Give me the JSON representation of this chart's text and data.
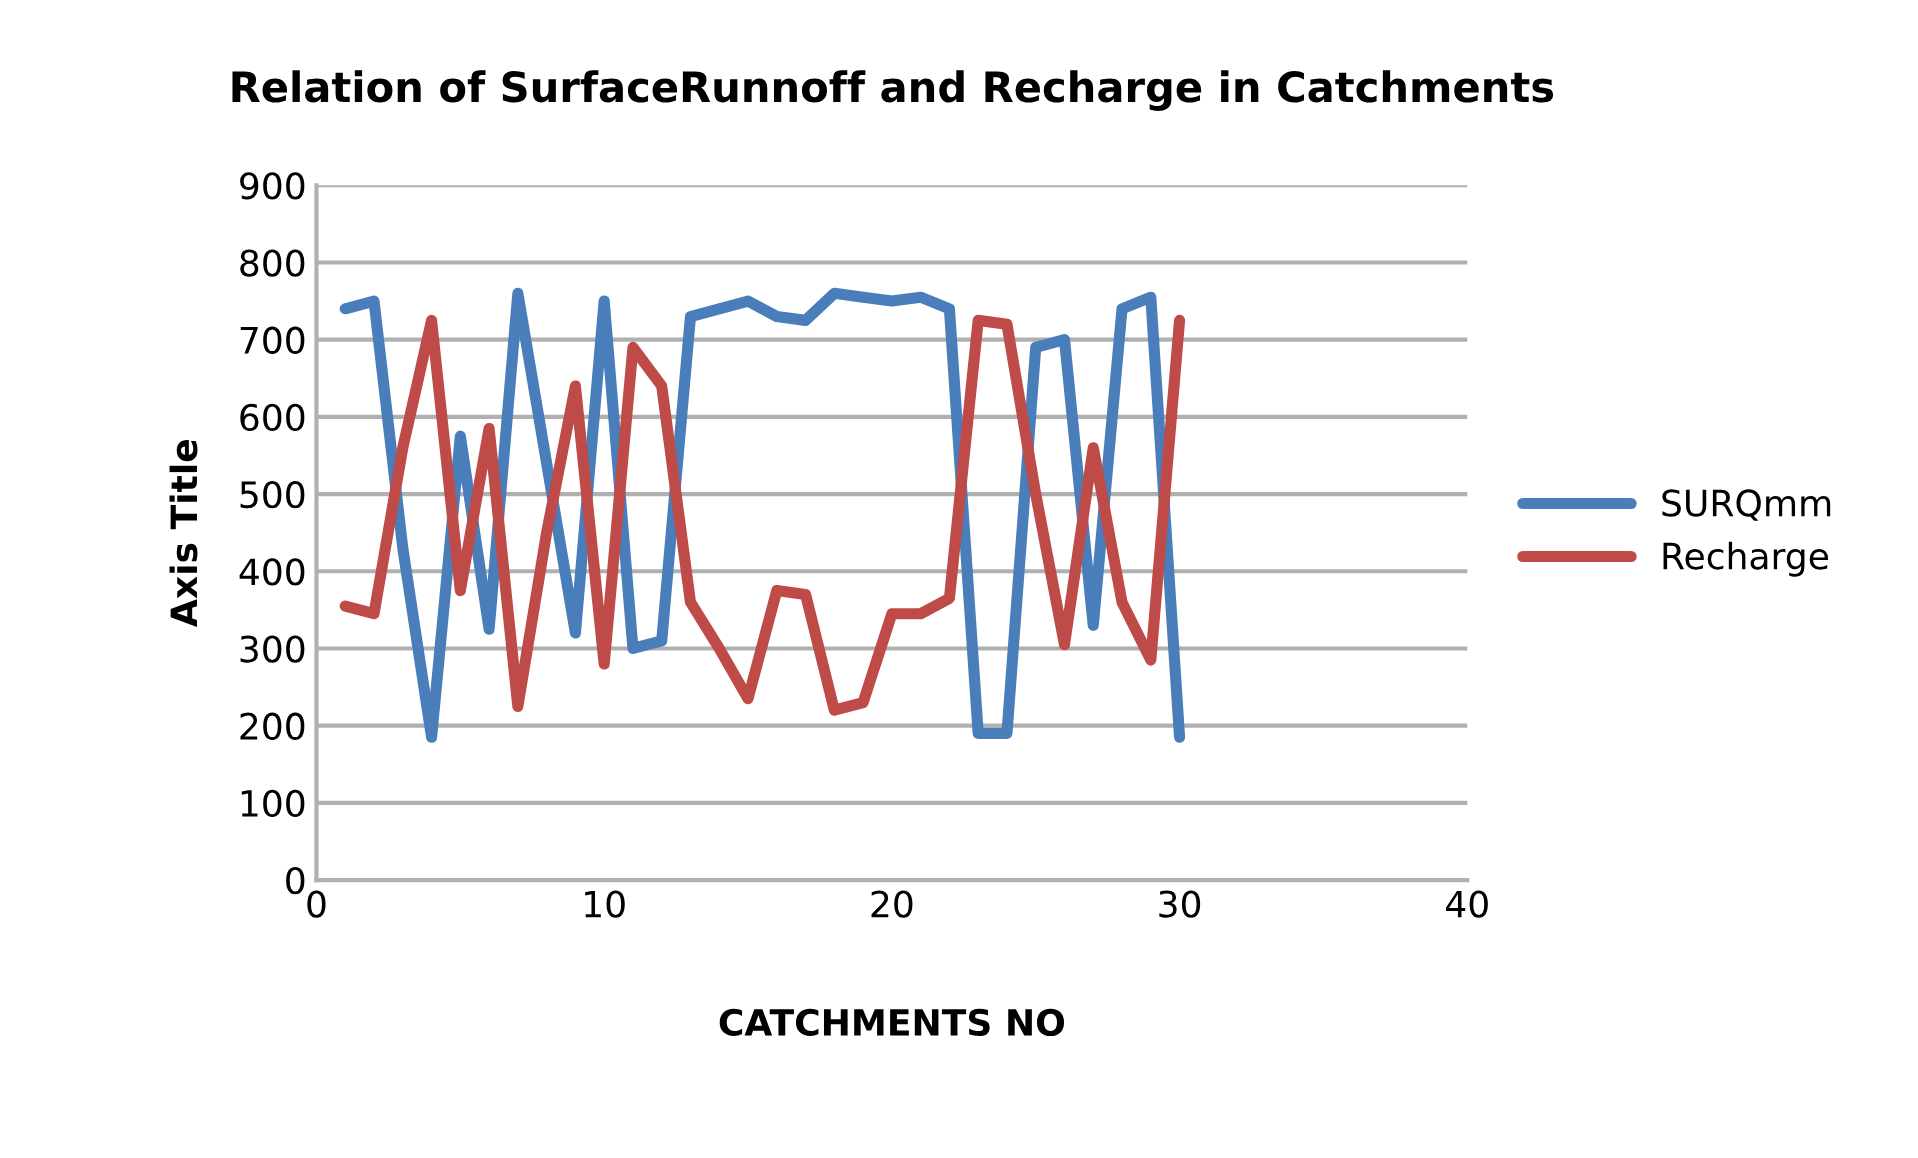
{
  "chart_data": {
    "type": "line",
    "title": "Relation of SurfaceRunnoff and Recharge in Catchments",
    "xlabel": "CATCHMENTS NO",
    "ylabel": "Axis Title",
    "x": [
      1,
      2,
      3,
      4,
      5,
      6,
      7,
      8,
      9,
      10,
      11,
      12,
      13,
      14,
      15,
      16,
      17,
      18,
      19,
      20,
      21,
      22,
      23,
      24,
      25,
      26,
      27,
      28,
      29,
      30
    ],
    "series": [
      {
        "name": "SURQmm",
        "color": "#4a7ebb",
        "values": [
          740,
          750,
          430,
          185,
          575,
          325,
          760,
          540,
          320,
          750,
          300,
          310,
          730,
          740,
          750,
          730,
          725,
          760,
          755,
          750,
          755,
          740,
          190,
          190,
          690,
          700,
          330,
          740,
          755,
          185
        ]
      },
      {
        "name": "Recharge",
        "color": "#be4b48",
        "values": [
          355,
          345,
          560,
          725,
          375,
          585,
          225,
          450,
          640,
          280,
          690,
          640,
          360,
          300,
          235,
          375,
          370,
          220,
          230,
          345,
          345,
          365,
          725,
          720,
          500,
          305,
          560,
          360,
          285,
          725
        ]
      }
    ],
    "xlim": [
      0,
      40
    ],
    "xticks": [
      0,
      10,
      20,
      30,
      40
    ],
    "ylim": [
      0,
      900
    ],
    "yticks": [
      0,
      100,
      200,
      300,
      400,
      500,
      600,
      700,
      800,
      900
    ],
    "grid": "y",
    "legend": "right",
    "marker": "none",
    "line_style": "solid"
  }
}
